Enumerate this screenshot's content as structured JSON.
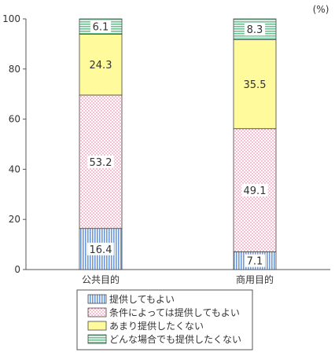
{
  "chart_data": {
    "type": "bar",
    "stacked": true,
    "unit_label": "(%)",
    "categories": [
      "公共目的",
      "商用目的"
    ],
    "ylim": [
      0,
      100
    ],
    "yticks": [
      0,
      20,
      40,
      60,
      80,
      100
    ],
    "grid": false,
    "legend_position": "bottom",
    "series": [
      {
        "name": "提供してもよい",
        "values": [
          16.4,
          7.1
        ],
        "color": "#92b6e6",
        "pattern": "vertical-lines"
      },
      {
        "name": "条件によっては提供してもよい",
        "values": [
          53.2,
          49.1
        ],
        "color": "#f7c4d3",
        "pattern": "dots"
      },
      {
        "name": "あまり提供したくない",
        "values": [
          24.3,
          35.5
        ],
        "color": "#fffb9c",
        "pattern": "solid"
      },
      {
        "name": "どんな場合でも提供したくない",
        "values": [
          6.1,
          8.3
        ],
        "color": "#9fd6b5",
        "pattern": "horizontal-lines"
      }
    ]
  }
}
